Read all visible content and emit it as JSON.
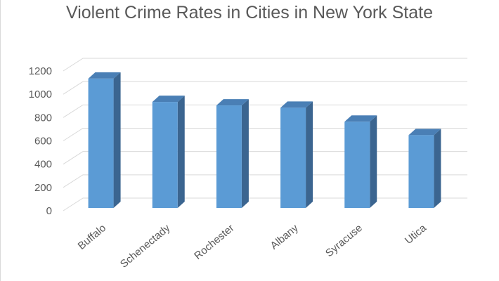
{
  "chart_data": {
    "type": "bar",
    "title": "Violent Crime Rates in Cities in New York State",
    "xlabel": "",
    "ylabel": "",
    "categories": [
      "Buffalo",
      "Schenectady",
      "Rochester",
      "Albany",
      "Syracuse",
      "Utica"
    ],
    "values": [
      1110,
      910,
      880,
      860,
      740,
      625
    ],
    "ylim": [
      0,
      1200
    ],
    "yticks": [
      0,
      200,
      400,
      600,
      800,
      1000,
      1200
    ],
    "grid": true,
    "legend": "none",
    "style": "3d-column",
    "colors": {
      "bar_front": "#5b9bd5",
      "bar_side": "#3b6590",
      "bar_top": "#4a7fb5",
      "grid": "#d9d9d9",
      "text": "#595959"
    }
  }
}
